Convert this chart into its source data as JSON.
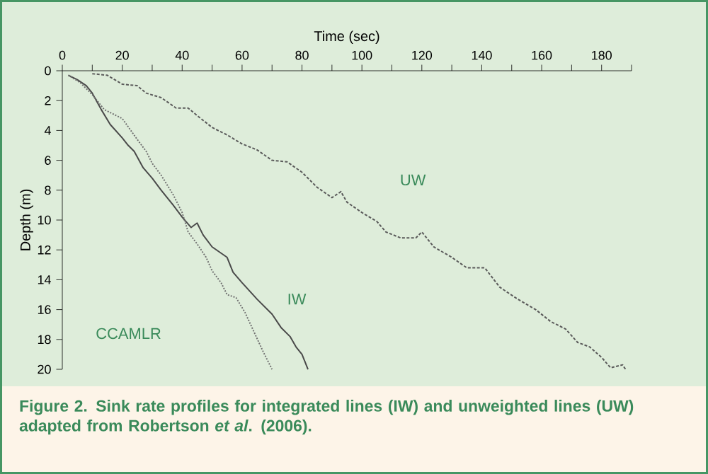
{
  "chart_data": {
    "type": "line",
    "xlabel": "Time (sec)",
    "ylabel": "Depth (m)",
    "xlim": [
      0,
      190
    ],
    "ylim": [
      20,
      0
    ],
    "xticks": [
      0,
      {
        "value": 10,
        "label": null
      },
      20,
      {
        "value": 30,
        "label": null
      },
      40,
      {
        "value": 50,
        "label": null
      },
      60,
      {
        "value": 70,
        "label": null
      },
      80,
      {
        "value": 90,
        "label": null
      },
      100,
      {
        "value": 110,
        "label": null
      },
      120,
      {
        "value": 130,
        "label": null
      },
      140,
      {
        "value": 150,
        "label": null
      },
      160,
      {
        "value": 170,
        "label": null
      },
      180,
      {
        "value": 190,
        "label": null
      }
    ],
    "yticks": [
      0,
      2,
      4,
      6,
      8,
      10,
      12,
      14,
      16,
      18,
      20
    ],
    "grid": false,
    "marker": "none",
    "series": [
      {
        "name": "IW",
        "color": "#4a4a4a",
        "line_style": "solid",
        "x": [
          2,
          5,
          8,
          10,
          13,
          16,
          20,
          22,
          24,
          27,
          30,
          33,
          37,
          40,
          43,
          45,
          47,
          50,
          55,
          57,
          60,
          65,
          70,
          73,
          76,
          78,
          80,
          81,
          82
        ],
        "values": [
          0.3,
          0.6,
          1.0,
          1.5,
          2.6,
          3.6,
          4.5,
          5.0,
          5.4,
          6.5,
          7.2,
          8.0,
          9.0,
          9.8,
          10.5,
          10.2,
          11.0,
          11.8,
          12.5,
          13.5,
          14.2,
          15.3,
          16.3,
          17.2,
          17.8,
          18.5,
          19.0,
          19.5,
          20.0
        ]
      },
      {
        "color": "#707070",
        "line_style": "dotted",
        "x": [
          2,
          6,
          10,
          14,
          20,
          25,
          28,
          30,
          33,
          37,
          40,
          42,
          45,
          48,
          50,
          53,
          55,
          58,
          61,
          64,
          67,
          70
        ],
        "values": [
          0.3,
          0.8,
          1.6,
          2.6,
          3.2,
          4.6,
          5.4,
          6.2,
          7.0,
          8.3,
          9.5,
          10.8,
          11.6,
          12.5,
          13.4,
          14.2,
          15.0,
          15.2,
          16.2,
          17.5,
          18.8,
          20.0
        ]
      },
      {
        "name": "UW",
        "color": "#5a5a5a",
        "line_style": "dashed",
        "x": [
          10,
          15,
          20,
          25,
          28,
          33,
          38,
          42,
          45,
          50,
          55,
          60,
          65,
          70,
          75,
          80,
          85,
          90,
          93,
          95,
          100,
          105,
          108,
          113,
          118,
          120,
          124,
          130,
          135,
          141,
          146,
          152,
          158,
          163,
          168,
          172,
          176,
          180,
          183,
          187,
          188
        ],
        "values": [
          0.2,
          0.3,
          0.9,
          1.0,
          1.5,
          1.8,
          2.5,
          2.5,
          3.0,
          3.8,
          4.3,
          4.9,
          5.3,
          6.0,
          6.1,
          6.8,
          7.8,
          8.5,
          8.1,
          8.8,
          9.5,
          10.1,
          10.8,
          11.2,
          11.2,
          10.8,
          11.8,
          12.5,
          13.2,
          13.2,
          14.5,
          15.3,
          16.0,
          16.8,
          17.3,
          18.2,
          18.5,
          19.2,
          19.9,
          19.7,
          20.0
        ]
      }
    ],
    "annotations": [
      "CCAMLR",
      "**Figure 2.** Sink rate profiles for integrated lines (IW) and unweighted lines (UW) adapted from Robertson *et al*. (2006)."
    ]
  }
}
